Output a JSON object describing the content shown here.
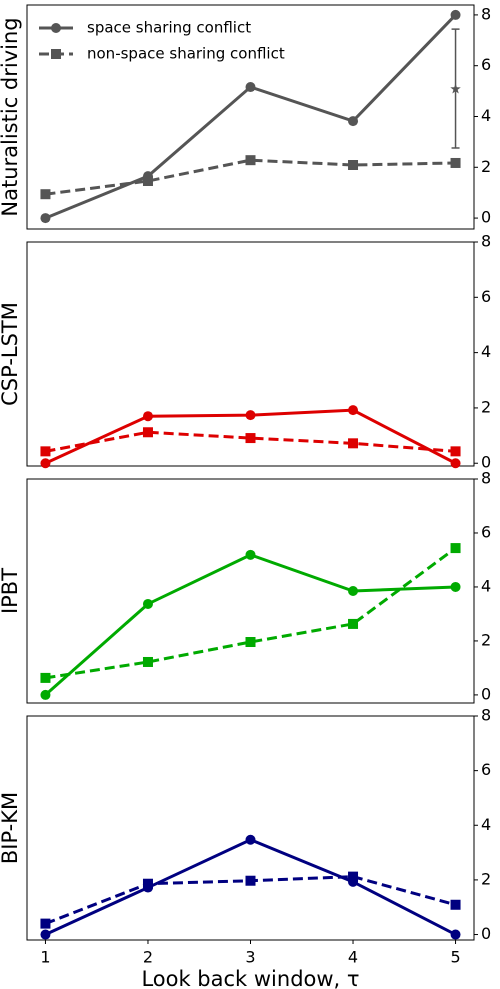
{
  "chart_data": [
    {
      "type": "line",
      "ylabel": "Naturalistic driving",
      "x": [
        1,
        2,
        3,
        4,
        5
      ],
      "xlim": [
        0.82,
        5.18
      ],
      "ylim": [
        -0.43,
        8.39
      ],
      "yticks": [
        0,
        2,
        4,
        6,
        8
      ],
      "legend": "upper left",
      "series": [
        {
          "name": "space sharing conflict",
          "color": "#555555",
          "marker": "o",
          "linestyle": "solid",
          "values": [
            0,
            1.65,
            5.16,
            3.82,
            8.0
          ]
        },
        {
          "name": "non-space sharing conflict",
          "color": "#555555",
          "marker": "s",
          "linestyle": "dashed",
          "values": [
            0.94,
            1.46,
            2.28,
            2.09,
            2.17
          ]
        }
      ],
      "error_bar": {
        "x": 5,
        "center": 5.08,
        "low": 2.76,
        "high": 7.44,
        "color": "#555555"
      }
    },
    {
      "type": "line",
      "ylabel": "CSP-LSTM",
      "x": [
        1,
        2,
        3,
        4,
        5
      ],
      "xlim": [
        0.82,
        5.18
      ],
      "ylim": [
        -0.1,
        8
      ],
      "yticks": [
        0,
        2,
        4,
        6,
        8
      ],
      "series": [
        {
          "color": "#dd0000",
          "marker": "o",
          "linestyle": "solid",
          "values": [
            0,
            1.7,
            1.74,
            1.92,
            0
          ]
        },
        {
          "color": "#dd0000",
          "marker": "s",
          "linestyle": "dashed",
          "values": [
            0.43,
            1.12,
            0.91,
            0.72,
            0.43
          ]
        }
      ]
    },
    {
      "type": "line",
      "ylabel": "IPBT",
      "x": [
        1,
        2,
        3,
        4,
        5
      ],
      "xlim": [
        0.82,
        5.18
      ],
      "ylim": [
        -0.3,
        8
      ],
      "yticks": [
        0,
        2,
        4,
        6,
        8
      ],
      "series": [
        {
          "color": "#00aa00",
          "marker": "o",
          "linestyle": "solid",
          "values": [
            0,
            3.37,
            5.19,
            3.85,
            4.0
          ]
        },
        {
          "color": "#00aa00",
          "marker": "s",
          "linestyle": "dashed",
          "values": [
            0.63,
            1.22,
            1.96,
            2.63,
            5.44
          ]
        }
      ]
    },
    {
      "type": "line",
      "ylabel": "BIP-KM",
      "x": [
        1,
        2,
        3,
        4,
        5
      ],
      "xlim": [
        0.82,
        5.18
      ],
      "ylim": [
        -0.2,
        8
      ],
      "yticks": [
        0,
        2,
        4,
        6,
        8
      ],
      "xticks": [
        1,
        2,
        3,
        4,
        5
      ],
      "xlabel": "Look back window, τ",
      "series": [
        {
          "color": "#000080",
          "marker": "o",
          "linestyle": "solid",
          "values": [
            0,
            1.72,
            3.47,
            1.93,
            0
          ]
        },
        {
          "color": "#000080",
          "marker": "s",
          "linestyle": "dashed",
          "values": [
            0.4,
            1.86,
            1.97,
            2.12,
            1.09
          ]
        }
      ]
    }
  ]
}
